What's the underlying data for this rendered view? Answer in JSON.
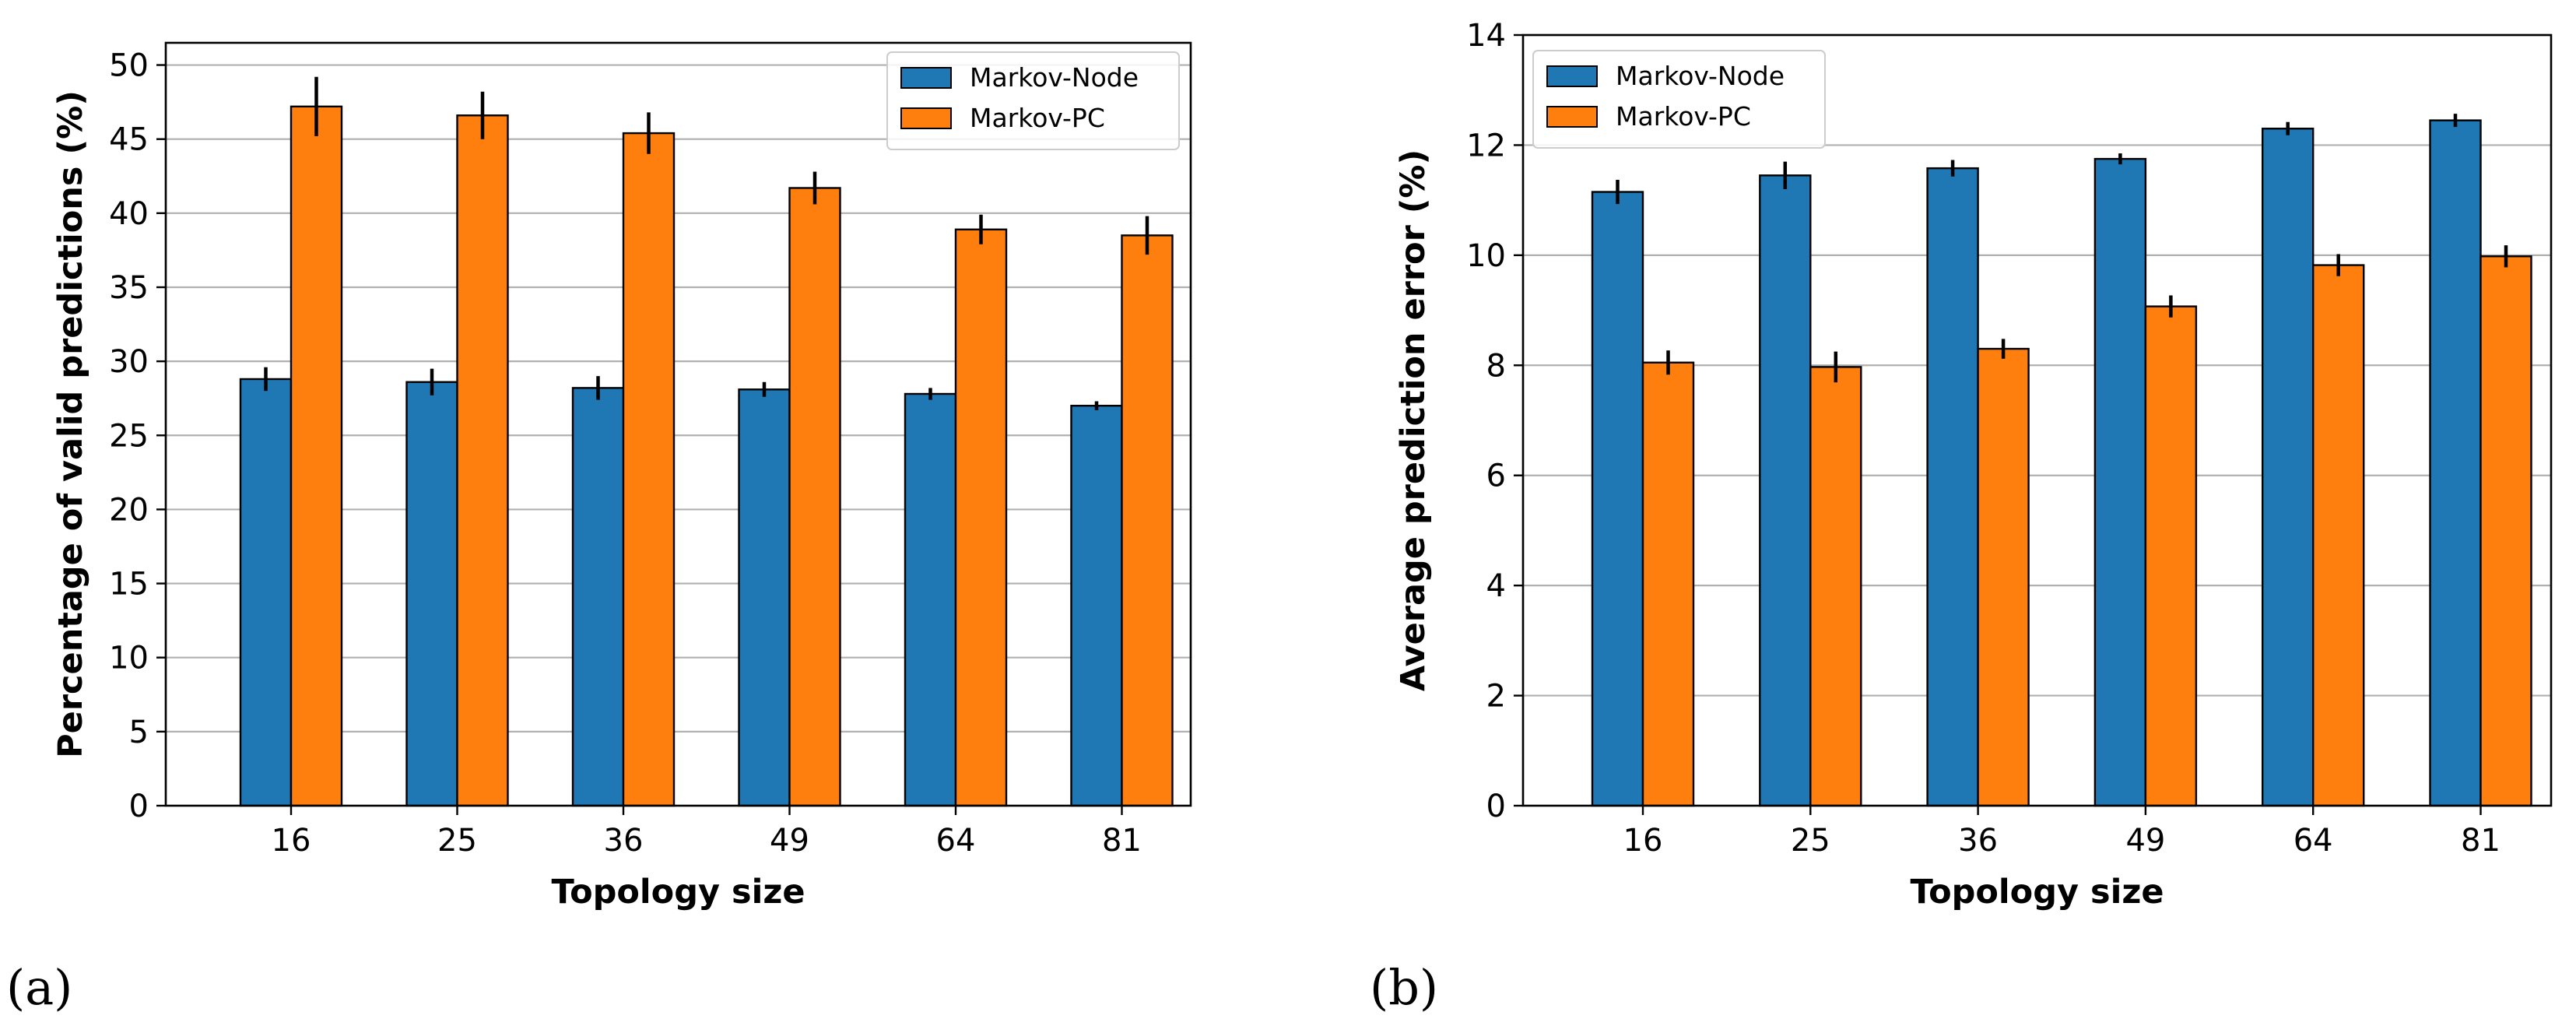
{
  "chart_data": [
    {
      "type": "bar",
      "panel_label": "(a)",
      "categories": [
        "16",
        "25",
        "36",
        "49",
        "64",
        "81"
      ],
      "series": [
        {
          "name": "Markov-Node",
          "color": "#1f77b4",
          "values": [
            28.8,
            28.6,
            28.2,
            28.1,
            27.8,
            27.0
          ],
          "errors": [
            0.8,
            0.9,
            0.8,
            0.5,
            0.4,
            0.3
          ]
        },
        {
          "name": "Markov-PC",
          "color": "#ff7f0e",
          "values": [
            47.2,
            46.6,
            45.4,
            41.7,
            38.9,
            38.5
          ],
          "errors": [
            2.0,
            1.6,
            1.4,
            1.1,
            1.0,
            1.3
          ]
        }
      ],
      "xlabel": "Topology size",
      "ylabel": "Percentage of valid predictions (%)",
      "ylim": [
        0,
        51.5
      ],
      "yticks": [
        0,
        5,
        10,
        15,
        20,
        25,
        30,
        35,
        40,
        45,
        50
      ],
      "grid": "y",
      "legend_position": "top-right"
    },
    {
      "type": "bar",
      "panel_label": "(b)",
      "categories": [
        "16",
        "25",
        "36",
        "49",
        "64",
        "81"
      ],
      "series": [
        {
          "name": "Markov-Node",
          "color": "#1f77b4",
          "values": [
            11.15,
            11.45,
            11.58,
            11.75,
            12.3,
            12.45
          ],
          "errors": [
            0.22,
            0.25,
            0.15,
            0.1,
            0.12,
            0.12
          ]
        },
        {
          "name": "Markov-PC",
          "color": "#ff7f0e",
          "values": [
            8.05,
            7.97,
            8.3,
            9.07,
            9.82,
            9.98
          ],
          "errors": [
            0.22,
            0.28,
            0.18,
            0.2,
            0.2,
            0.2
          ]
        }
      ],
      "xlabel": "Topology size",
      "ylabel": "Average prediction error (%)",
      "ylim": [
        0,
        14
      ],
      "yticks": [
        0,
        2,
        4,
        6,
        8,
        10,
        12,
        14
      ],
      "grid": "y",
      "legend_position": "top-left"
    }
  ]
}
